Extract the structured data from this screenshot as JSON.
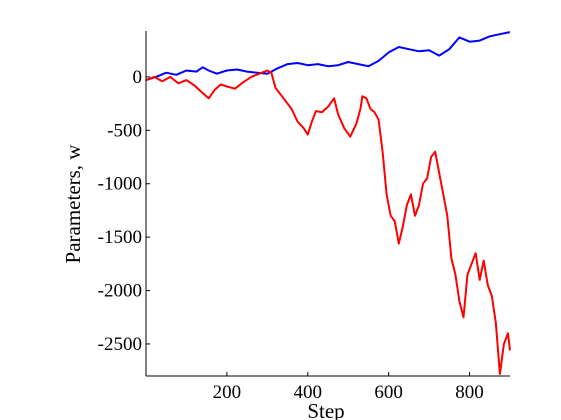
{
  "chart_data": {
    "type": "line",
    "xlabel": "Step",
    "ylabel": "Parameters,  w",
    "xlim": [
      0,
      900
    ],
    "ylim": [
      -2800,
      430
    ],
    "xticks": [
      200,
      400,
      600,
      800
    ],
    "yticks": [
      0,
      -500,
      -1000,
      -1500,
      -2000,
      -2500
    ],
    "grid": false,
    "series": [
      {
        "color": "#0000ff",
        "points": [
          [
            0,
            -30
          ],
          [
            25,
            0
          ],
          [
            50,
            40
          ],
          [
            75,
            20
          ],
          [
            100,
            60
          ],
          [
            125,
            50
          ],
          [
            140,
            90
          ],
          [
            155,
            60
          ],
          [
            175,
            30
          ],
          [
            200,
            60
          ],
          [
            225,
            70
          ],
          [
            250,
            50
          ],
          [
            275,
            40
          ],
          [
            300,
            30
          ],
          [
            325,
            80
          ],
          [
            350,
            120
          ],
          [
            375,
            130
          ],
          [
            400,
            110
          ],
          [
            425,
            120
          ],
          [
            450,
            100
          ],
          [
            475,
            110
          ],
          [
            500,
            140
          ],
          [
            525,
            120
          ],
          [
            550,
            100
          ],
          [
            575,
            150
          ],
          [
            600,
            230
          ],
          [
            625,
            280
          ],
          [
            650,
            260
          ],
          [
            675,
            240
          ],
          [
            700,
            250
          ],
          [
            725,
            200
          ],
          [
            750,
            260
          ],
          [
            775,
            370
          ],
          [
            800,
            330
          ],
          [
            825,
            340
          ],
          [
            850,
            380
          ],
          [
            875,
            400
          ],
          [
            900,
            420
          ]
        ]
      },
      {
        "color": "#ff0000",
        "points": [
          [
            0,
            -30
          ],
          [
            20,
            0
          ],
          [
            40,
            -40
          ],
          [
            60,
            0
          ],
          [
            80,
            -60
          ],
          [
            100,
            -30
          ],
          [
            120,
            -80
          ],
          [
            140,
            -150
          ],
          [
            155,
            -200
          ],
          [
            170,
            -120
          ],
          [
            185,
            -70
          ],
          [
            200,
            -90
          ],
          [
            220,
            -110
          ],
          [
            240,
            -50
          ],
          [
            260,
            0
          ],
          [
            280,
            30
          ],
          [
            300,
            60
          ],
          [
            310,
            40
          ],
          [
            320,
            -100
          ],
          [
            340,
            -200
          ],
          [
            360,
            -300
          ],
          [
            375,
            -420
          ],
          [
            390,
            -480
          ],
          [
            400,
            -540
          ],
          [
            410,
            -420
          ],
          [
            420,
            -320
          ],
          [
            435,
            -330
          ],
          [
            450,
            -280
          ],
          [
            465,
            -200
          ],
          [
            475,
            -350
          ],
          [
            490,
            -480
          ],
          [
            505,
            -560
          ],
          [
            520,
            -440
          ],
          [
            530,
            -300
          ],
          [
            535,
            -180
          ],
          [
            545,
            -200
          ],
          [
            555,
            -300
          ],
          [
            565,
            -330
          ],
          [
            575,
            -400
          ],
          [
            585,
            -700
          ],
          [
            595,
            -1100
          ],
          [
            605,
            -1300
          ],
          [
            615,
            -1350
          ],
          [
            625,
            -1560
          ],
          [
            635,
            -1400
          ],
          [
            645,
            -1200
          ],
          [
            655,
            -1100
          ],
          [
            665,
            -1300
          ],
          [
            675,
            -1200
          ],
          [
            685,
            -1000
          ],
          [
            695,
            -950
          ],
          [
            705,
            -750
          ],
          [
            715,
            -700
          ],
          [
            725,
            -900
          ],
          [
            735,
            -1100
          ],
          [
            745,
            -1300
          ],
          [
            755,
            -1700
          ],
          [
            765,
            -1850
          ],
          [
            775,
            -2100
          ],
          [
            785,
            -2250
          ],
          [
            795,
            -1850
          ],
          [
            805,
            -1750
          ],
          [
            815,
            -1650
          ],
          [
            825,
            -1900
          ],
          [
            835,
            -1720
          ],
          [
            845,
            -1950
          ],
          [
            855,
            -2050
          ],
          [
            865,
            -2300
          ],
          [
            875,
            -2780
          ],
          [
            885,
            -2500
          ],
          [
            895,
            -2400
          ],
          [
            900,
            -2560
          ]
        ]
      }
    ]
  }
}
